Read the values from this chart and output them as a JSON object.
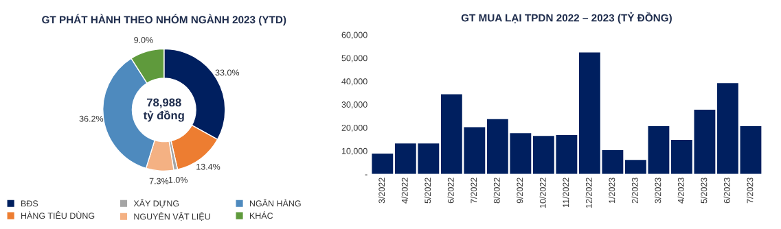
{
  "chart_data": [
    {
      "type": "donut",
      "title": "GT PHÁT HÀNH THEO NHÓM NGÀNH 2023 (YTD)",
      "categories": [
        "BĐS",
        "HÀNG TIÊU DÙNG",
        "XÂY DỰNG",
        "NGUYÊN VẬT LIỆU",
        "NGÂN HÀNG",
        "KHÁC"
      ],
      "values": [
        33.0,
        13.4,
        1.0,
        7.3,
        36.2,
        9.0
      ],
      "colors": [
        "#001f5f",
        "#ed7d31",
        "#a5a5a5",
        "#f4b183",
        "#4e8abe",
        "#5f9a3c"
      ],
      "value_labels": [
        "33.0%",
        "13.4%",
        "1.0%",
        "7.3%",
        "36.2%",
        "9.0%"
      ],
      "annotations": [
        "78,988\ntỷ đồng"
      ],
      "legend": "bottom"
    },
    {
      "type": "bar",
      "title": "GT MUA LẠI TPDN 2022 – 2023 (TỶ ĐỒNG)",
      "categories": [
        "3/2022",
        "4/2022",
        "5/2022",
        "6/2022",
        "7/2022",
        "8/2022",
        "9/2022",
        "10/2022",
        "11/2022",
        "12/2022",
        "1/2023",
        "2/2023",
        "3/2023",
        "4/2023",
        "5/2023",
        "6/2023",
        "7/2023"
      ],
      "values": [
        8800,
        13200,
        13200,
        34400,
        20200,
        23700,
        17600,
        16400,
        16800,
        52400,
        10300,
        6100,
        20600,
        14700,
        27700,
        39200,
        20600
      ],
      "color": "#001f5f",
      "ylim": [
        0,
        60000
      ],
      "yticks": [
        {
          "value": 0,
          "label": "-"
        },
        {
          "value": 10000,
          "label": "10,000"
        },
        {
          "value": 20000,
          "label": "20,000"
        },
        {
          "value": 30000,
          "label": "30,000"
        },
        {
          "value": 40000,
          "label": "40,000"
        },
        {
          "value": 50000,
          "label": "50,000"
        },
        {
          "value": 60000,
          "label": "60,000"
        }
      ],
      "grid": false,
      "legend": false
    }
  ]
}
